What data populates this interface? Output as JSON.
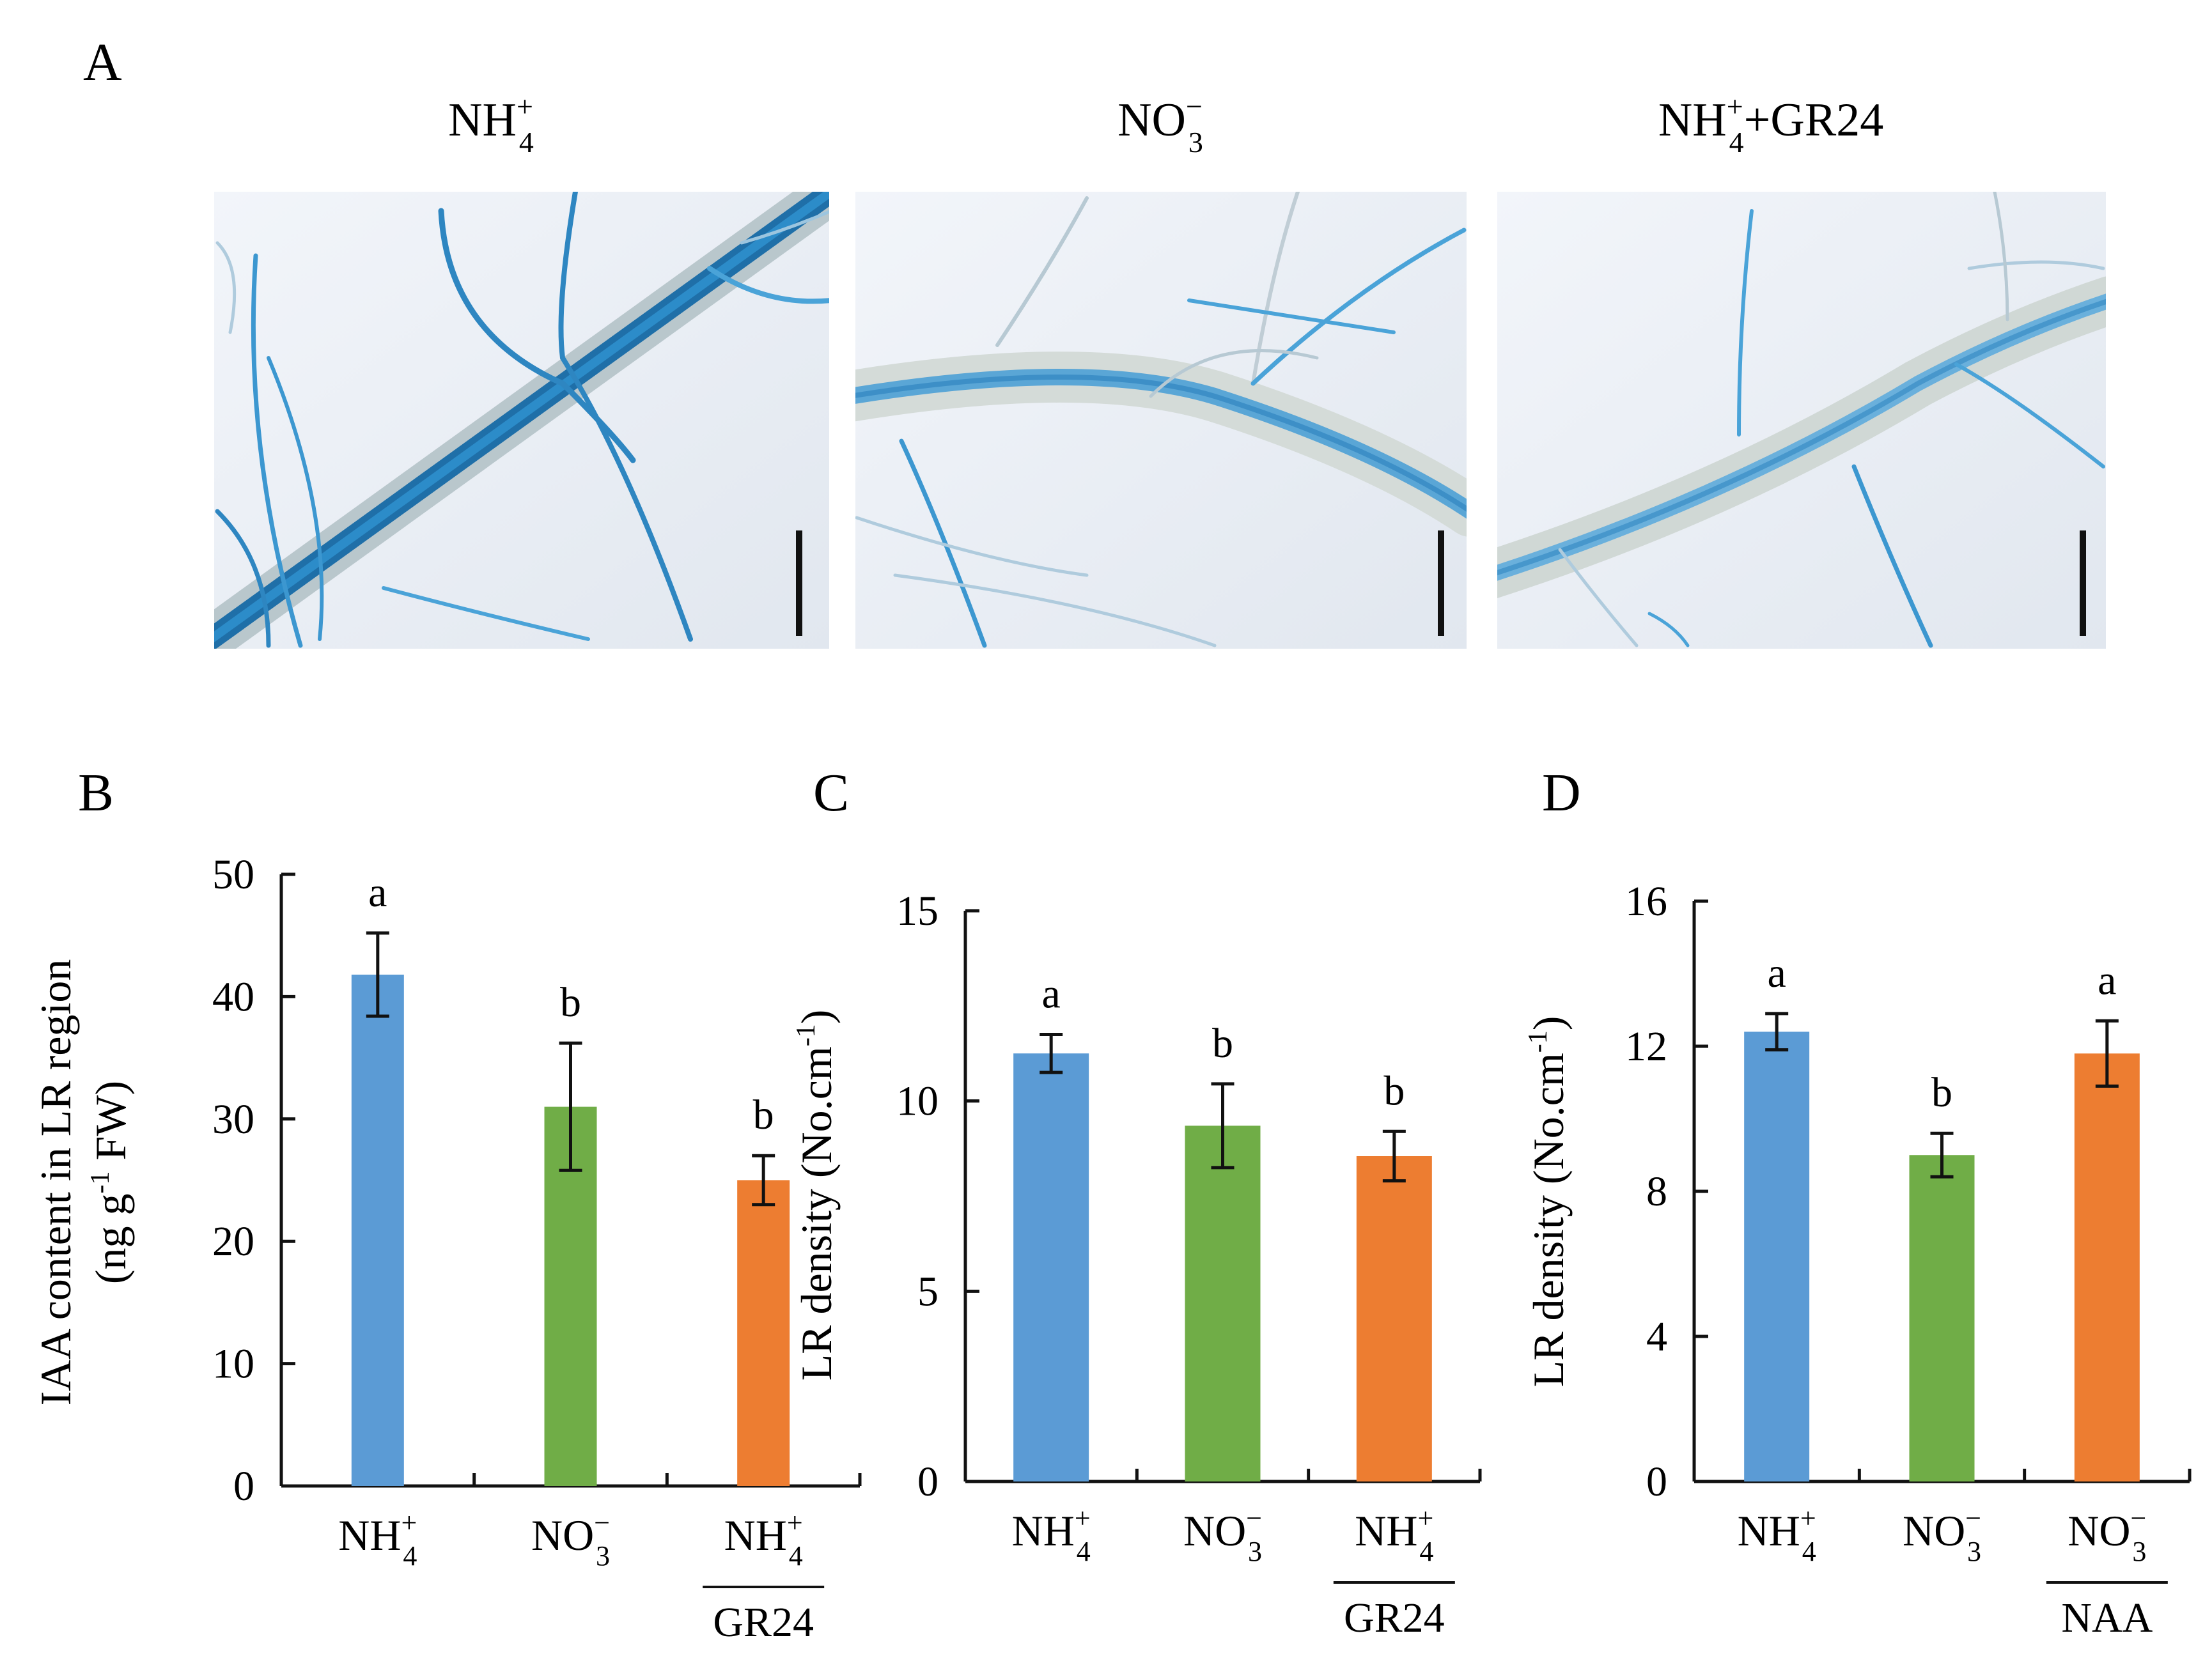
{
  "figure": {
    "panel_letters": [
      "A",
      "B",
      "C",
      "D"
    ],
    "photos": [
      {
        "label_main": "NH",
        "label_sub": "4",
        "label_sup": "+",
        "label_suffix": ""
      },
      {
        "label_main": "NO",
        "label_sub": "3",
        "label_sup": "−",
        "label_suffix": ""
      },
      {
        "label_main": "NH",
        "label_sub": "4",
        "label_sup": "+",
        "label_suffix": "+GR24"
      }
    ]
  },
  "colors": {
    "blue": "#5B9BD5",
    "green": "#70AD47",
    "orange": "#ED7D31",
    "stain": "#2E86C1",
    "photo_bg": "#E9EEF5",
    "root": "#C9D3D0"
  },
  "chart_data": [
    {
      "panel": "B",
      "type": "bar",
      "ylabel_lines": [
        "IAA content in LR region",
        "(ng g-1 FW)"
      ],
      "ylabel_line2_parts": {
        "pre": "(ng g",
        "sup": "-1",
        "post": " FW)"
      },
      "ylim": [
        0,
        50
      ],
      "yticks": [
        0,
        10,
        20,
        30,
        40,
        50
      ],
      "categories": [
        {
          "main": "NH",
          "sub": "4",
          "sup": "+",
          "below": ""
        },
        {
          "main": "NO",
          "sub": "3",
          "sup": "−",
          "below": ""
        },
        {
          "main": "NH",
          "sub": "4",
          "sup": "+",
          "below": "GR24"
        }
      ],
      "values": [
        41.8,
        31.0,
        25.0
      ],
      "errors": [
        3.4,
        5.2,
        2.0
      ],
      "letters": [
        "a",
        "b",
        "b"
      ]
    },
    {
      "panel": "C",
      "type": "bar",
      "ylabel_lines": [
        "LR density (No.cm-1)"
      ],
      "ylabel_line2_parts": {
        "pre": "LR density (No.cm",
        "sup": "-1",
        "post": ")"
      },
      "ylim": [
        0,
        15
      ],
      "yticks": [
        0,
        5,
        10,
        15
      ],
      "categories": [
        {
          "main": "NH",
          "sub": "4",
          "sup": "+",
          "below": ""
        },
        {
          "main": "NO",
          "sub": "3",
          "sup": "−",
          "below": ""
        },
        {
          "main": "NH",
          "sub": "4",
          "sup": "+",
          "below": "GR24"
        }
      ],
      "values": [
        11.25,
        9.35,
        8.55
      ],
      "errors": [
        0.5,
        1.1,
        0.65
      ],
      "letters": [
        "a",
        "b",
        "b"
      ]
    },
    {
      "panel": "D",
      "type": "bar",
      "ylabel_lines": [
        "LR density (No.cm-1)"
      ],
      "ylabel_line2_parts": {
        "pre": "LR density (No.cm",
        "sup": "-1",
        "post": ")"
      },
      "ylim": [
        0,
        16
      ],
      "yticks": [
        0,
        4,
        8,
        12,
        16
      ],
      "categories": [
        {
          "main": "NH",
          "sub": "4",
          "sup": "+",
          "below": ""
        },
        {
          "main": "NO",
          "sub": "3",
          "sup": "−",
          "below": ""
        },
        {
          "main": "NO",
          "sub": "3",
          "sup": "−",
          "below": "NAA"
        }
      ],
      "values": [
        12.4,
        9.0,
        11.8
      ],
      "errors": [
        0.5,
        0.6,
        0.9
      ],
      "letters": [
        "a",
        "b",
        "a"
      ]
    }
  ]
}
